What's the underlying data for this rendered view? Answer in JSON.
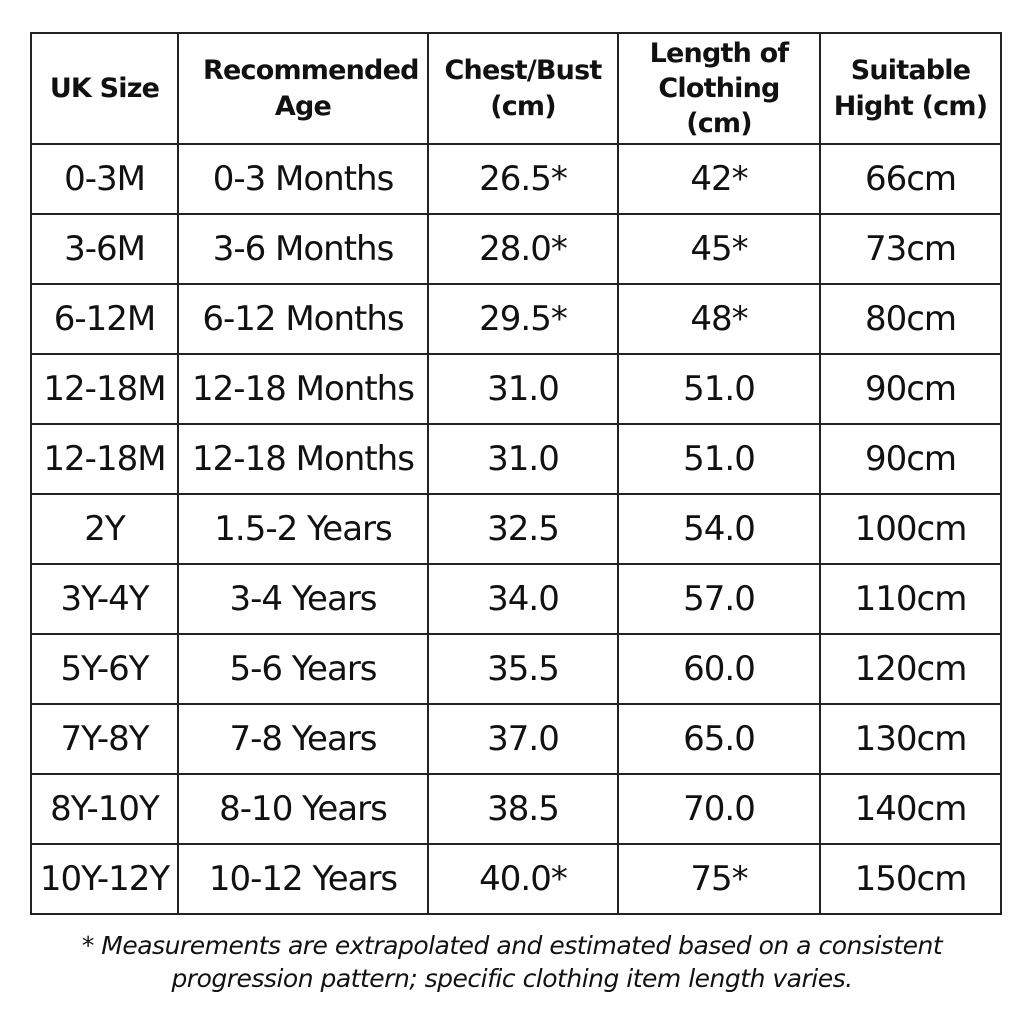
{
  "table": {
    "header": [
      "UK Size",
      "Recommended Age",
      "Chest/Bust (cm)",
      "Length of Clothing (cm)",
      "Suitable Hight (cm)"
    ],
    "rows": [
      [
        "0-3M",
        "0-3 Months",
        "26.5*",
        "42*",
        "66cm"
      ],
      [
        "3-6M",
        "3-6 Months",
        "28.0*",
        "45*",
        "73cm"
      ],
      [
        "6-12M",
        "6-12 Months",
        "29.5*",
        "48*",
        "80cm"
      ],
      [
        "12-18M",
        "12-18 Months",
        "31.0",
        "51.0",
        "90cm"
      ],
      [
        "12-18M",
        "12-18 Months",
        "31.0",
        "51.0",
        "90cm"
      ],
      [
        "2Y",
        "1.5-2 Years",
        "32.5",
        "54.0",
        "100cm"
      ],
      [
        "3Y-4Y",
        "3-4 Years",
        "34.0",
        "57.0",
        "110cm"
      ],
      [
        "5Y-6Y",
        "5-6 Years",
        "35.5",
        "60.0",
        "120cm"
      ],
      [
        "7Y-8Y",
        "7-8 Years",
        "37.0",
        "65.0",
        "130cm"
      ],
      [
        "8Y-10Y",
        "8-10 Years",
        "38.5",
        "70.0",
        "140cm"
      ],
      [
        "10Y-12Y",
        "10-12 Years",
        "40.0*",
        "75*",
        "150cm"
      ]
    ]
  },
  "footnote": "* Measurements are extrapolated and estimated based on a consistent progression pattern; specific clothing item length varies."
}
